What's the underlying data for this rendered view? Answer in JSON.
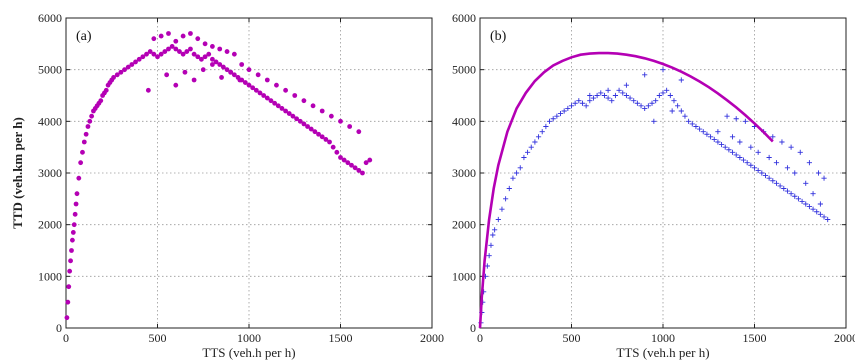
{
  "chart_data": [
    {
      "type": "scatter",
      "panel_label": "(a)",
      "xlabel": "TTS (veh.h per h)",
      "ylabel": "TTD (veh.km per h)",
      "xlim": [
        0,
        2000
      ],
      "ylim": [
        0,
        6000
      ],
      "xticks": [
        "0",
        "500",
        "1000",
        "1500",
        "2000"
      ],
      "yticks": [
        "0",
        "1000",
        "2000",
        "3000",
        "4000",
        "5000",
        "6000"
      ],
      "grid": true,
      "marker": "dot",
      "color": "#b400b4",
      "series": [
        {
          "x": [
            5,
            10,
            15,
            20,
            25,
            30,
            35,
            40,
            45,
            50,
            55,
            60,
            70,
            80,
            90,
            100,
            110,
            120,
            130,
            140,
            150,
            160,
            170,
            180,
            190,
            200,
            210,
            220,
            230,
            240,
            250,
            260,
            280,
            300,
            320,
            340,
            360,
            380,
            400,
            420,
            440,
            460,
            480,
            500,
            520,
            540,
            560,
            580,
            600,
            620,
            640,
            660,
            680,
            700,
            720,
            740,
            760,
            780,
            800,
            820,
            840,
            860,
            880,
            900,
            920,
            940,
            960,
            980,
            1000,
            1020,
            1040,
            1060,
            1080,
            1100,
            1120,
            1140,
            1160,
            1180,
            1200,
            1220,
            1240,
            1260,
            1280,
            1300,
            1320,
            1340,
            1360,
            1380,
            1400,
            1420,
            1440,
            1460,
            1480,
            1500,
            1520,
            1540,
            1560,
            1580,
            1600,
            1620,
            1640,
            1660,
            480,
            520,
            560,
            600,
            640,
            680,
            720,
            760,
            800,
            840,
            880,
            920,
            960,
            1000,
            1050,
            1100,
            1150,
            1200,
            1250,
            1300,
            1350,
            1400,
            1450,
            1500,
            1550,
            1600,
            550,
            650,
            750,
            850,
            950,
            450,
            600,
            700,
            800,
            900
          ],
          "y": [
            200,
            500,
            800,
            1100,
            1300,
            1500,
            1700,
            1850,
            2000,
            2200,
            2400,
            2600,
            2900,
            3200,
            3400,
            3600,
            3750,
            3900,
            4000,
            4100,
            4200,
            4250,
            4300,
            4350,
            4400,
            4500,
            4550,
            4600,
            4700,
            4750,
            4800,
            4850,
            4900,
            4950,
            5000,
            5050,
            5100,
            5150,
            5200,
            5250,
            5300,
            5350,
            5300,
            5250,
            5300,
            5350,
            5400,
            5450,
            5400,
            5350,
            5300,
            5350,
            5400,
            5300,
            5250,
            5200,
            5250,
            5300,
            5200,
            5150,
            5100,
            5050,
            5000,
            4950,
            4900,
            4850,
            4800,
            4750,
            4700,
            4650,
            4600,
            4550,
            4500,
            4450,
            4400,
            4350,
            4300,
            4250,
            4200,
            4150,
            4100,
            4050,
            4000,
            3950,
            3900,
            3850,
            3800,
            3750,
            3700,
            3650,
            3600,
            3500,
            3400,
            3300,
            3250,
            3200,
            3150,
            3100,
            3050,
            3000,
            3200,
            3250,
            5600,
            5650,
            5700,
            5550,
            5650,
            5700,
            5600,
            5500,
            5450,
            5400,
            5350,
            5300,
            5100,
            5000,
            4900,
            4800,
            4700,
            4600,
            4500,
            4400,
            4300,
            4200,
            4100,
            4000,
            3900,
            3800,
            4900,
            4950,
            5000,
            4850,
            4800,
            4600,
            4700,
            4800,
            5100,
            4950
          ]
        }
      ]
    },
    {
      "type": "scatter",
      "panel_label": "(b)",
      "xlabel": "TTS (veh.h per h)",
      "ylabel": "",
      "xlim": [
        0,
        2000
      ],
      "ylim": [
        0,
        6000
      ],
      "xticks": [
        "0",
        "500",
        "1000",
        "1500",
        "2000"
      ],
      "yticks": [
        "0",
        "1000",
        "2000",
        "3000",
        "4000",
        "5000",
        "6000"
      ],
      "grid": true,
      "marker": "plus",
      "color": "#3333dd",
      "series": [
        {
          "x": [
            5,
            10,
            15,
            20,
            30,
            40,
            50,
            60,
            70,
            80,
            100,
            120,
            140,
            160,
            180,
            200,
            220,
            240,
            260,
            280,
            300,
            320,
            340,
            360,
            380,
            400,
            420,
            440,
            460,
            480,
            500,
            520,
            540,
            560,
            580,
            600,
            620,
            640,
            660,
            680,
            700,
            720,
            740,
            760,
            780,
            800,
            820,
            840,
            860,
            880,
            900,
            920,
            940,
            960,
            980,
            1000,
            1020,
            1040,
            1060,
            1080,
            1100,
            1120,
            1140,
            1160,
            1180,
            1200,
            1220,
            1240,
            1260,
            1280,
            1300,
            1320,
            1340,
            1360,
            1380,
            1400,
            1420,
            1440,
            1460,
            1480,
            1500,
            1520,
            1540,
            1560,
            1580,
            1600,
            1620,
            1640,
            1660,
            1680,
            1700,
            1720,
            1740,
            1760,
            1780,
            1800,
            1820,
            1840,
            1860,
            1880,
            1900,
            1350,
            1400,
            1450,
            1500,
            1550,
            1600,
            1650,
            1700,
            1750,
            1800,
            1850,
            1880,
            1300,
            1380,
            1420,
            1480,
            1520,
            1580,
            1620,
            1680,
            1720,
            1780,
            1820,
            1860,
            900,
            1000,
            1100,
            800,
            700,
            600,
            950,
            1050
          ],
          "y": [
            100,
            300,
            500,
            700,
            1000,
            1200,
            1400,
            1600,
            1800,
            1900,
            2100,
            2300,
            2500,
            2700,
            2900,
            3000,
            3100,
            3300,
            3400,
            3500,
            3600,
            3700,
            3800,
            3900,
            4000,
            4050,
            4100,
            4150,
            4200,
            4250,
            4300,
            4350,
            4400,
            4350,
            4300,
            4400,
            4450,
            4500,
            4550,
            4500,
            4450,
            4400,
            4500,
            4600,
            4550,
            4500,
            4450,
            4400,
            4350,
            4300,
            4250,
            4300,
            4350,
            4400,
            4500,
            4550,
            4600,
            4500,
            4400,
            4300,
            4200,
            4100,
            4000,
            3950,
            3900,
            3850,
            3800,
            3750,
            3700,
            3650,
            3600,
            3550,
            3500,
            3450,
            3400,
            3350,
            3300,
            3250,
            3200,
            3150,
            3100,
            3050,
            3000,
            2950,
            2900,
            2850,
            2800,
            2750,
            2700,
            2650,
            2600,
            2550,
            2500,
            2450,
            2400,
            2350,
            2300,
            2250,
            2200,
            2150,
            2100,
            4100,
            4050,
            4000,
            3900,
            3800,
            3700,
            3600,
            3500,
            3400,
            3200,
            3000,
            2900,
            3800,
            3700,
            3600,
            3500,
            3400,
            3300,
            3200,
            3100,
            3000,
            2800,
            2600,
            2400,
            4900,
            5000,
            4800,
            4700,
            4600,
            4500,
            4000,
            4200
          ]
        }
      ],
      "curve": {
        "color": "#b400b4",
        "x": [
          0,
          10,
          25,
          50,
          75,
          100,
          150,
          200,
          250,
          300,
          350,
          400,
          450,
          500,
          550,
          600,
          650,
          700,
          750,
          800,
          850,
          900,
          950,
          1000,
          1050,
          1100,
          1150,
          1200,
          1250,
          1300,
          1350,
          1400,
          1450,
          1500,
          1550,
          1600
        ],
        "y": [
          0,
          600,
          1300,
          2100,
          2700,
          3150,
          3800,
          4250,
          4550,
          4780,
          4950,
          5080,
          5170,
          5240,
          5290,
          5310,
          5320,
          5320,
          5310,
          5290,
          5260,
          5220,
          5170,
          5110,
          5040,
          4960,
          4870,
          4770,
          4660,
          4540,
          4410,
          4270,
          4120,
          3960,
          3790,
          3610
        ]
      }
    }
  ]
}
